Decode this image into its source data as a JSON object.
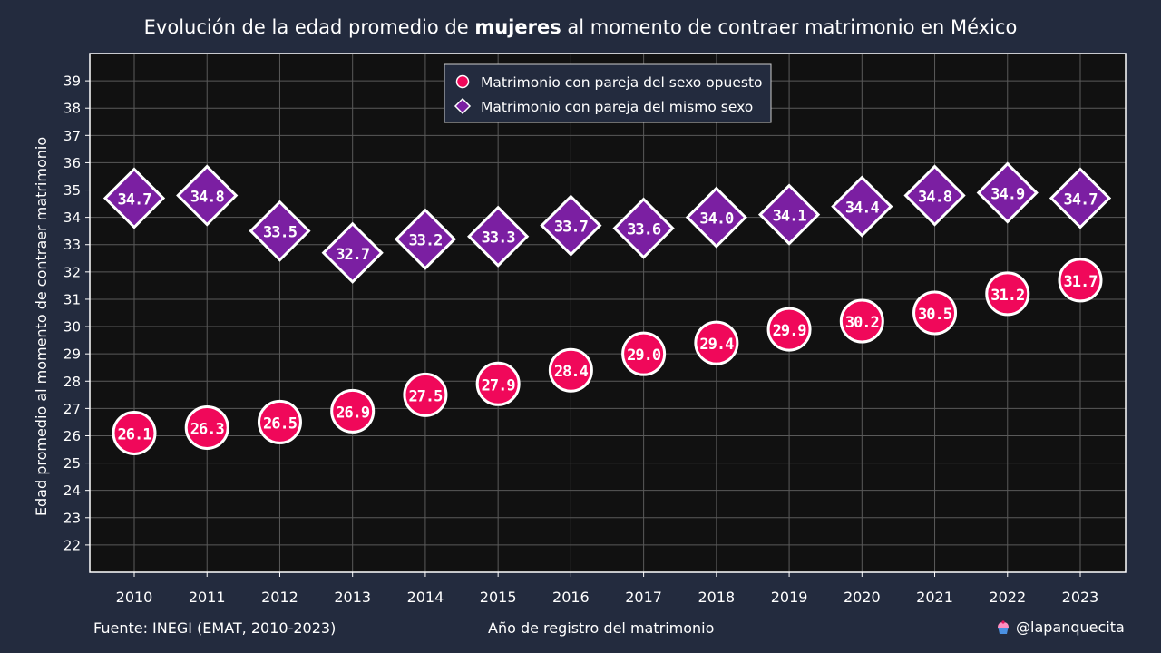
{
  "title": {
    "prefix": "Evolución de la edad promedio de ",
    "bold": "mujeres",
    "suffix": " al momento de contraer matrimonio en México"
  },
  "footer": {
    "source": "Fuente: INEGI (EMAT, 2010-2023)",
    "xlabel": "Año de registro del matrimonio",
    "handle": "@lapanquecita"
  },
  "colors": {
    "background": "#232b3e",
    "plot_bg": "#111111",
    "opposite": "#f0085a",
    "same": "#7b1fa2"
  },
  "chart_data": {
    "type": "scatter",
    "ylabel": "Edad promedio al momento de contraer matrimonio",
    "xlabel": "Año de registro del matrimonio",
    "ylim": [
      21,
      40
    ],
    "yticks": [
      22,
      23,
      24,
      25,
      26,
      27,
      28,
      29,
      30,
      31,
      32,
      33,
      34,
      35,
      36,
      37,
      38,
      39
    ],
    "x": [
      "2010",
      "2011",
      "2012",
      "2013",
      "2014",
      "2015",
      "2016",
      "2017",
      "2018",
      "2019",
      "2020",
      "2021",
      "2022",
      "2023"
    ],
    "grid": true,
    "legend_position": "top-center",
    "series": [
      {
        "name": "Matrimonio con pareja del sexo opuesto",
        "marker": "circle",
        "values": [
          26.1,
          26.3,
          26.5,
          26.9,
          27.5,
          27.9,
          28.4,
          29.0,
          29.4,
          29.9,
          30.2,
          30.5,
          31.2,
          31.7
        ],
        "labels": [
          "26.1",
          "26.3",
          "26.5",
          "26.9",
          "27.5",
          "27.9",
          "28.4",
          "29.0",
          "29.4",
          "29.9",
          "30.2",
          "30.5",
          "31.2",
          "31.7"
        ]
      },
      {
        "name": "Matrimonio con pareja del mismo sexo",
        "marker": "diamond",
        "values": [
          34.7,
          34.8,
          33.5,
          32.7,
          33.2,
          33.3,
          33.7,
          33.6,
          34.0,
          34.1,
          34.4,
          34.8,
          34.9,
          34.7
        ],
        "labels": [
          "34.7",
          "34.8",
          "33.5",
          "32.7",
          "33.2",
          "33.3",
          "33.7",
          "33.6",
          "34.0",
          "34.1",
          "34.4",
          "34.8",
          "34.9",
          "34.7"
        ]
      }
    ]
  }
}
